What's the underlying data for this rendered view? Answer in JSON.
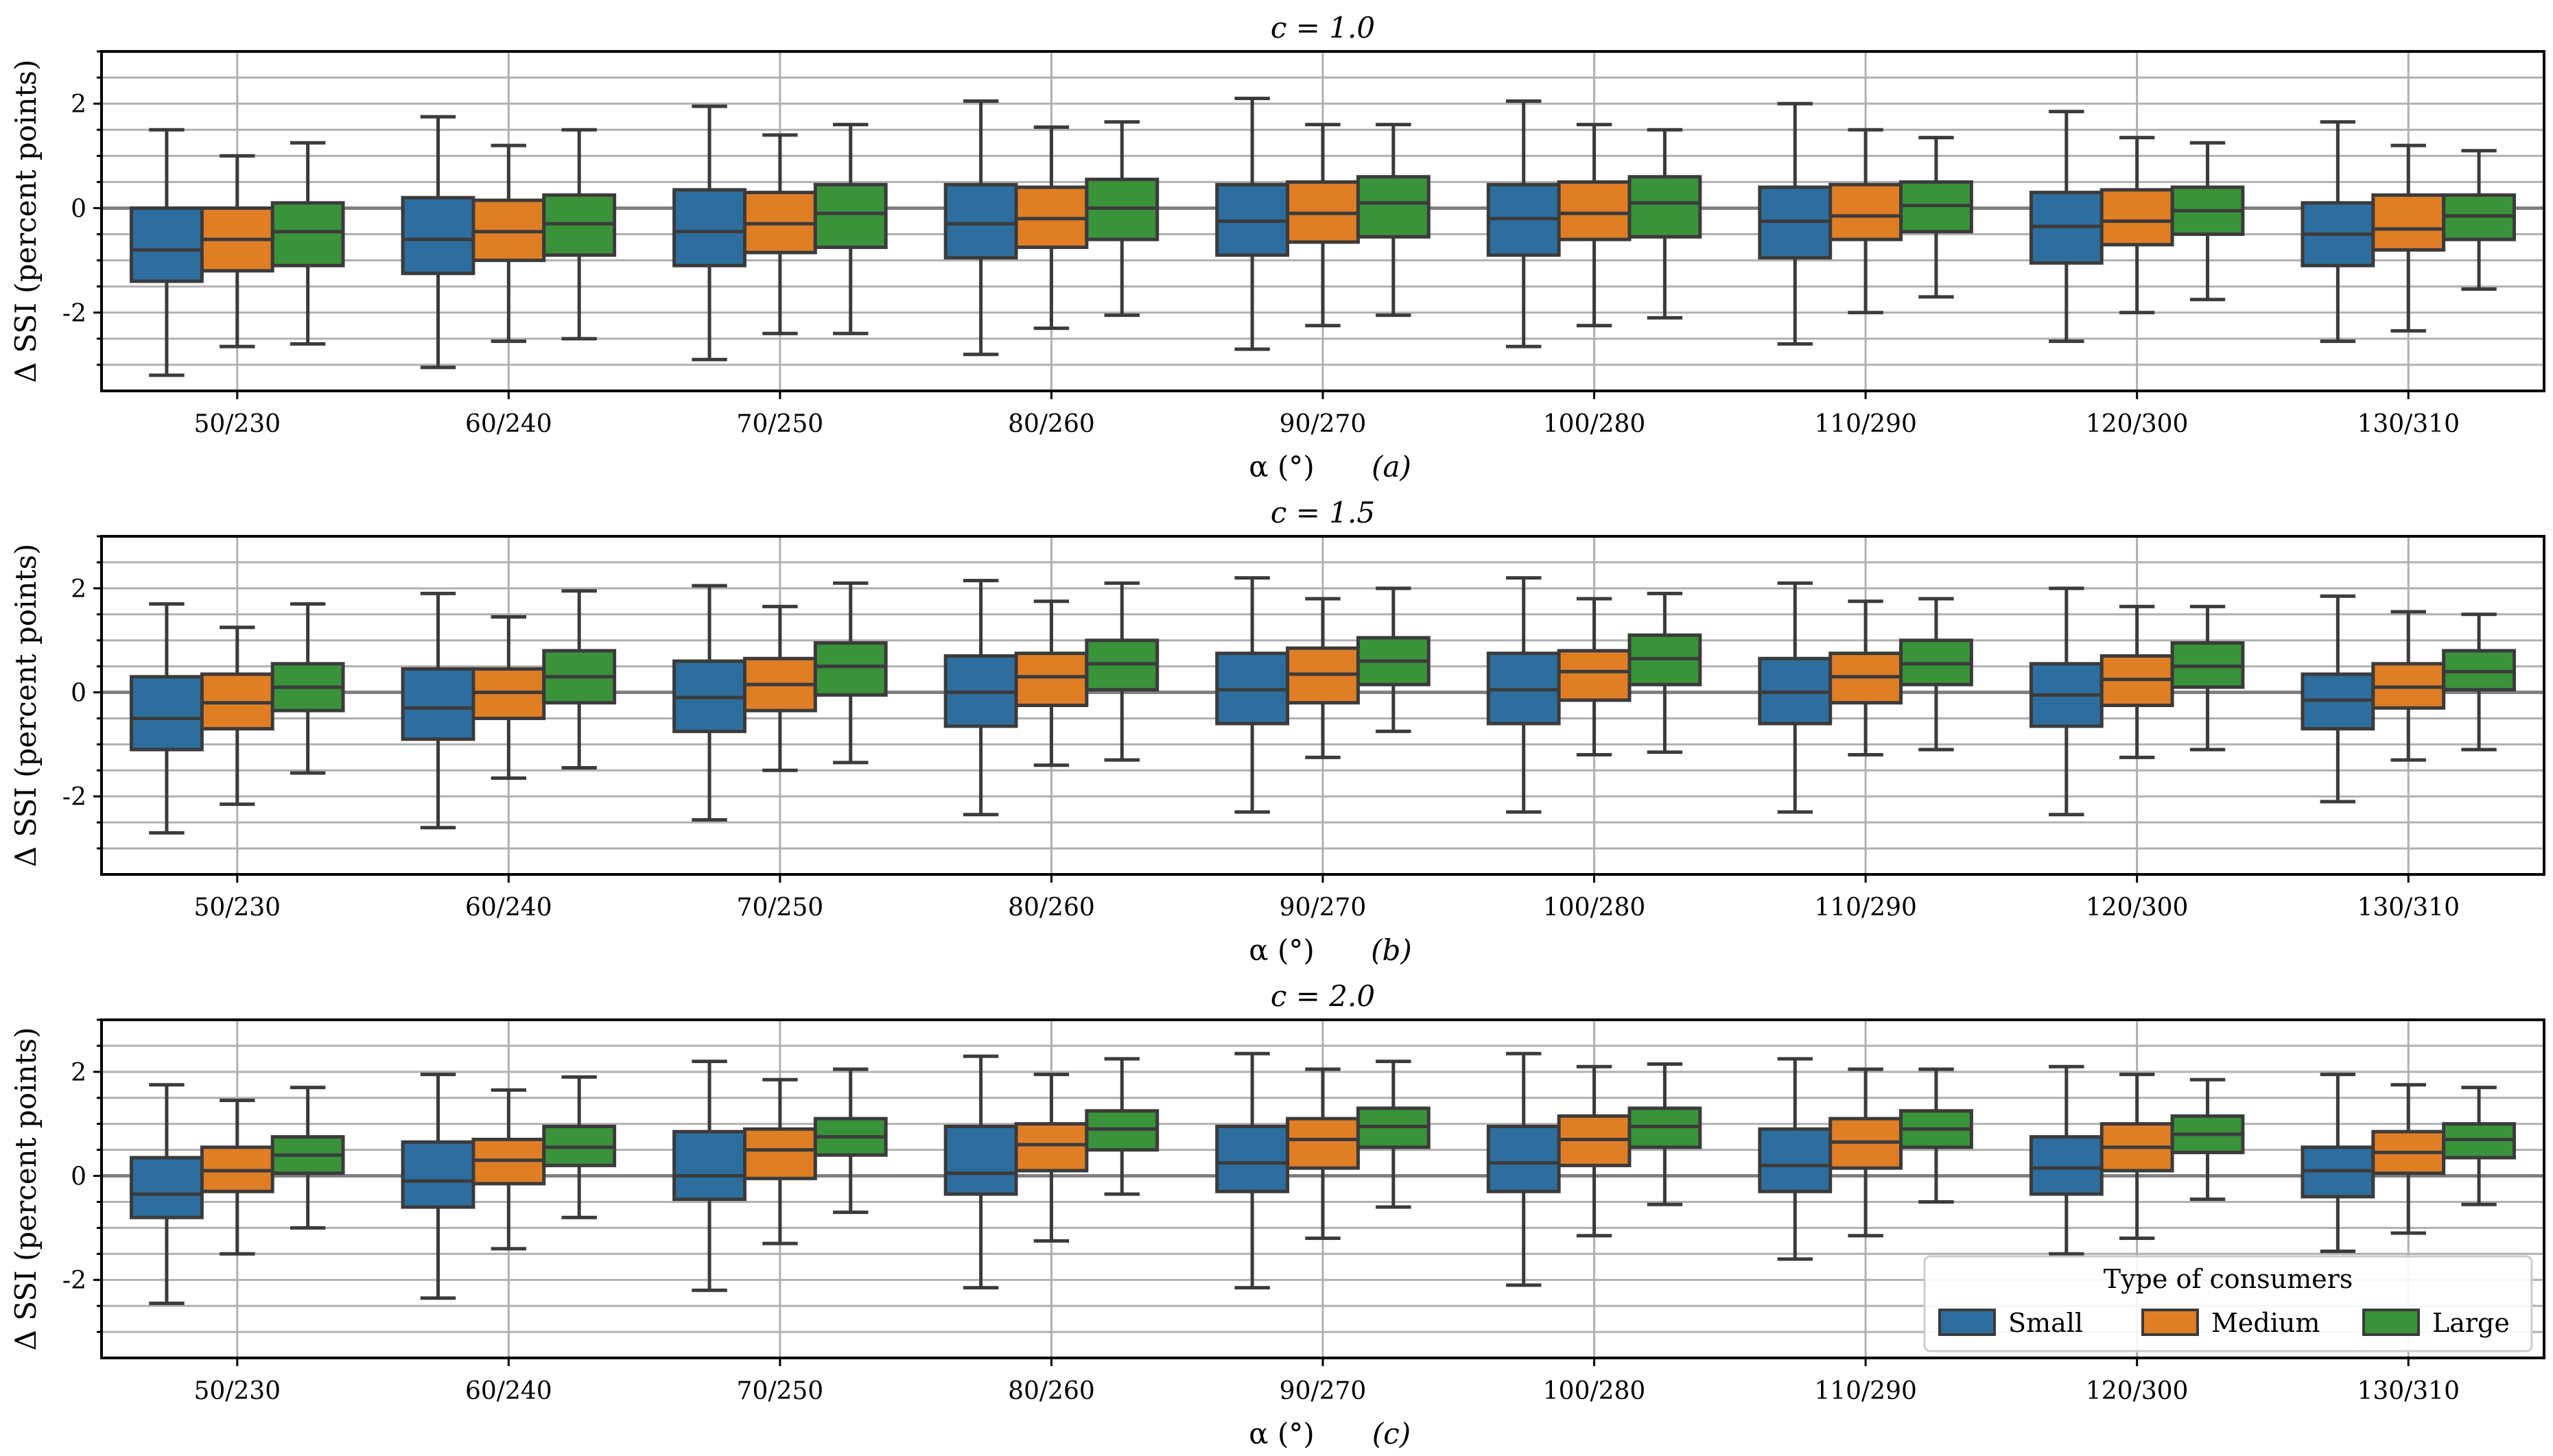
{
  "colors": {
    "small": "#2d6e9e",
    "medium": "#e07e26",
    "large": "#3a923a",
    "box_edge": "#3b3b3b",
    "grid": "#b0b0b0",
    "zero_line": "#808080",
    "median_line": "#cfcfcf"
  },
  "legend": {
    "title": "Type of consumers",
    "items": [
      {
        "key": "small",
        "label": "Small"
      },
      {
        "key": "medium",
        "label": "Medium"
      },
      {
        "key": "large",
        "label": "Large"
      }
    ]
  },
  "chart_data": [
    {
      "type": "box",
      "title": "c = 1.0",
      "ylabel": "Δ SSI (percent points)",
      "xlabel": "α (°)",
      "panel": "(a)",
      "ylim": [
        -3.5,
        3.0
      ],
      "yticks": [
        -2,
        0,
        2
      ],
      "categories": [
        "50/230",
        "60/240",
        "70/250",
        "80/260",
        "90/270",
        "100/280",
        "110/290",
        "120/300",
        "130/310"
      ],
      "series": [
        {
          "name": "Small",
          "key": "small",
          "boxes": [
            {
              "whislo": -3.2,
              "q1": -1.4,
              "med": -0.8,
              "q3": 0.0,
              "whishi": 1.5
            },
            {
              "whislo": -3.05,
              "q1": -1.25,
              "med": -0.6,
              "q3": 0.2,
              "whishi": 1.75
            },
            {
              "whislo": -2.9,
              "q1": -1.1,
              "med": -0.45,
              "q3": 0.35,
              "whishi": 1.95
            },
            {
              "whislo": -2.8,
              "q1": -0.95,
              "med": -0.3,
              "q3": 0.45,
              "whishi": 2.05
            },
            {
              "whislo": -2.7,
              "q1": -0.9,
              "med": -0.25,
              "q3": 0.45,
              "whishi": 2.1
            },
            {
              "whislo": -2.65,
              "q1": -0.9,
              "med": -0.2,
              "q3": 0.45,
              "whishi": 2.05
            },
            {
              "whislo": -2.6,
              "q1": -0.95,
              "med": -0.25,
              "q3": 0.4,
              "whishi": 2.0
            },
            {
              "whislo": -2.55,
              "q1": -1.05,
              "med": -0.35,
              "q3": 0.3,
              "whishi": 1.85
            },
            {
              "whislo": -2.55,
              "q1": -1.1,
              "med": -0.5,
              "q3": 0.1,
              "whishi": 1.65
            }
          ]
        },
        {
          "name": "Medium",
          "key": "medium",
          "boxes": [
            {
              "whislo": -2.65,
              "q1": -1.2,
              "med": -0.6,
              "q3": 0.0,
              "whishi": 1.0
            },
            {
              "whislo": -2.55,
              "q1": -1.0,
              "med": -0.45,
              "q3": 0.15,
              "whishi": 1.2
            },
            {
              "whislo": -2.4,
              "q1": -0.85,
              "med": -0.3,
              "q3": 0.3,
              "whishi": 1.4
            },
            {
              "whislo": -2.3,
              "q1": -0.75,
              "med": -0.2,
              "q3": 0.4,
              "whishi": 1.55
            },
            {
              "whislo": -2.25,
              "q1": -0.65,
              "med": -0.1,
              "q3": 0.5,
              "whishi": 1.6
            },
            {
              "whislo": -2.25,
              "q1": -0.6,
              "med": -0.1,
              "q3": 0.5,
              "whishi": 1.6
            },
            {
              "whislo": -2.0,
              "q1": -0.6,
              "med": -0.15,
              "q3": 0.45,
              "whishi": 1.5
            },
            {
              "whislo": -2.0,
              "q1": -0.7,
              "med": -0.25,
              "q3": 0.35,
              "whishi": 1.35
            },
            {
              "whislo": -2.35,
              "q1": -0.8,
              "med": -0.4,
              "q3": 0.25,
              "whishi": 1.2
            }
          ]
        },
        {
          "name": "Large",
          "key": "large",
          "boxes": [
            {
              "whislo": -2.6,
              "q1": -1.1,
              "med": -0.45,
              "q3": 0.1,
              "whishi": 1.25
            },
            {
              "whislo": -2.5,
              "q1": -0.9,
              "med": -0.3,
              "q3": 0.25,
              "whishi": 1.5
            },
            {
              "whislo": -2.4,
              "q1": -0.75,
              "med": -0.1,
              "q3": 0.45,
              "whishi": 1.6
            },
            {
              "whislo": -2.05,
              "q1": -0.6,
              "med": 0.0,
              "q3": 0.55,
              "whishi": 1.65
            },
            {
              "whislo": -2.05,
              "q1": -0.55,
              "med": 0.1,
              "q3": 0.6,
              "whishi": 1.6
            },
            {
              "whislo": -2.1,
              "q1": -0.55,
              "med": 0.1,
              "q3": 0.6,
              "whishi": 1.5
            },
            {
              "whislo": -1.7,
              "q1": -0.45,
              "med": 0.05,
              "q3": 0.5,
              "whishi": 1.35
            },
            {
              "whislo": -1.75,
              "q1": -0.5,
              "med": -0.05,
              "q3": 0.4,
              "whishi": 1.25
            },
            {
              "whislo": -1.55,
              "q1": -0.6,
              "med": -0.15,
              "q3": 0.25,
              "whishi": 1.1
            }
          ]
        }
      ]
    },
    {
      "type": "box",
      "title": "c = 1.5",
      "ylabel": "Δ SSI (percent points)",
      "xlabel": "α (°)",
      "panel": "(b)",
      "ylim": [
        -3.5,
        3.0
      ],
      "yticks": [
        -2,
        0,
        2
      ],
      "categories": [
        "50/230",
        "60/240",
        "70/250",
        "80/260",
        "90/270",
        "100/280",
        "110/290",
        "120/300",
        "130/310"
      ],
      "series": [
        {
          "name": "Small",
          "key": "small",
          "boxes": [
            {
              "whislo": -2.7,
              "q1": -1.1,
              "med": -0.5,
              "q3": 0.3,
              "whishi": 1.7
            },
            {
              "whislo": -2.6,
              "q1": -0.9,
              "med": -0.3,
              "q3": 0.45,
              "whishi": 1.9
            },
            {
              "whislo": -2.45,
              "q1": -0.75,
              "med": -0.1,
              "q3": 0.6,
              "whishi": 2.05
            },
            {
              "whislo": -2.35,
              "q1": -0.65,
              "med": 0.0,
              "q3": 0.7,
              "whishi": 2.15
            },
            {
              "whislo": -2.3,
              "q1": -0.6,
              "med": 0.05,
              "q3": 0.75,
              "whishi": 2.2
            },
            {
              "whislo": -2.3,
              "q1": -0.6,
              "med": 0.05,
              "q3": 0.75,
              "whishi": 2.2
            },
            {
              "whislo": -2.3,
              "q1": -0.6,
              "med": 0.0,
              "q3": 0.65,
              "whishi": 2.1
            },
            {
              "whislo": -2.35,
              "q1": -0.65,
              "med": -0.05,
              "q3": 0.55,
              "whishi": 2.0
            },
            {
              "whislo": -2.1,
              "q1": -0.7,
              "med": -0.15,
              "q3": 0.35,
              "whishi": 1.85
            }
          ]
        },
        {
          "name": "Medium",
          "key": "medium",
          "boxes": [
            {
              "whislo": -2.15,
              "q1": -0.7,
              "med": -0.2,
              "q3": 0.35,
              "whishi": 1.25
            },
            {
              "whislo": -1.65,
              "q1": -0.5,
              "med": 0.0,
              "q3": 0.45,
              "whishi": 1.45
            },
            {
              "whislo": -1.5,
              "q1": -0.35,
              "med": 0.15,
              "q3": 0.65,
              "whishi": 1.65
            },
            {
              "whislo": -1.4,
              "q1": -0.25,
              "med": 0.3,
              "q3": 0.75,
              "whishi": 1.75
            },
            {
              "whislo": -1.25,
              "q1": -0.2,
              "med": 0.35,
              "q3": 0.85,
              "whishi": 1.8
            },
            {
              "whislo": -1.2,
              "q1": -0.15,
              "med": 0.4,
              "q3": 0.8,
              "whishi": 1.8
            },
            {
              "whislo": -1.2,
              "q1": -0.2,
              "med": 0.3,
              "q3": 0.75,
              "whishi": 1.75
            },
            {
              "whislo": -1.25,
              "q1": -0.25,
              "med": 0.25,
              "q3": 0.7,
              "whishi": 1.65
            },
            {
              "whislo": -1.3,
              "q1": -0.3,
              "med": 0.1,
              "q3": 0.55,
              "whishi": 1.55
            }
          ]
        },
        {
          "name": "Large",
          "key": "large",
          "boxes": [
            {
              "whislo": -1.55,
              "q1": -0.35,
              "med": 0.1,
              "q3": 0.55,
              "whishi": 1.7
            },
            {
              "whislo": -1.45,
              "q1": -0.2,
              "med": 0.3,
              "q3": 0.8,
              "whishi": 1.95
            },
            {
              "whislo": -1.35,
              "q1": -0.05,
              "med": 0.5,
              "q3": 0.95,
              "whishi": 2.1
            },
            {
              "whislo": -1.3,
              "q1": 0.05,
              "med": 0.55,
              "q3": 1.0,
              "whishi": 2.1
            },
            {
              "whislo": -0.75,
              "q1": 0.15,
              "med": 0.6,
              "q3": 1.05,
              "whishi": 2.0
            },
            {
              "whislo": -1.15,
              "q1": 0.15,
              "med": 0.65,
              "q3": 1.1,
              "whishi": 1.9
            },
            {
              "whislo": -1.1,
              "q1": 0.15,
              "med": 0.55,
              "q3": 1.0,
              "whishi": 1.8
            },
            {
              "whislo": -1.1,
              "q1": 0.1,
              "med": 0.5,
              "q3": 0.95,
              "whishi": 1.65
            },
            {
              "whislo": -1.1,
              "q1": 0.05,
              "med": 0.4,
              "q3": 0.8,
              "whishi": 1.5
            }
          ]
        }
      ]
    },
    {
      "type": "box",
      "title": "c = 2.0",
      "ylabel": "Δ SSI (percent points)",
      "xlabel": "α (°)",
      "panel": "(c)",
      "ylim": [
        -3.5,
        3.0
      ],
      "yticks": [
        -2,
        0,
        2
      ],
      "categories": [
        "50/230",
        "60/240",
        "70/250",
        "80/260",
        "90/270",
        "100/280",
        "110/290",
        "120/300",
        "130/310"
      ],
      "series": [
        {
          "name": "Small",
          "key": "small",
          "boxes": [
            {
              "whislo": -2.45,
              "q1": -0.8,
              "med": -0.35,
              "q3": 0.35,
              "whishi": 1.75
            },
            {
              "whislo": -2.35,
              "q1": -0.6,
              "med": -0.1,
              "q3": 0.65,
              "whishi": 1.95
            },
            {
              "whislo": -2.2,
              "q1": -0.45,
              "med": 0.0,
              "q3": 0.85,
              "whishi": 2.2
            },
            {
              "whislo": -2.15,
              "q1": -0.35,
              "med": 0.05,
              "q3": 0.95,
              "whishi": 2.3
            },
            {
              "whislo": -2.15,
              "q1": -0.3,
              "med": 0.25,
              "q3": 0.95,
              "whishi": 2.35
            },
            {
              "whislo": -2.1,
              "q1": -0.3,
              "med": 0.25,
              "q3": 0.95,
              "whishi": 2.35
            },
            {
              "whislo": -1.6,
              "q1": -0.3,
              "med": 0.2,
              "q3": 0.9,
              "whishi": 2.25
            },
            {
              "whislo": -1.5,
              "q1": -0.35,
              "med": 0.15,
              "q3": 0.75,
              "whishi": 2.1
            },
            {
              "whislo": -1.45,
              "q1": -0.4,
              "med": 0.1,
              "q3": 0.55,
              "whishi": 1.95
            }
          ]
        },
        {
          "name": "Medium",
          "key": "medium",
          "boxes": [
            {
              "whislo": -1.5,
              "q1": -0.3,
              "med": 0.1,
              "q3": 0.55,
              "whishi": 1.45
            },
            {
              "whislo": -1.4,
              "q1": -0.15,
              "med": 0.3,
              "q3": 0.7,
              "whishi": 1.65
            },
            {
              "whislo": -1.3,
              "q1": -0.05,
              "med": 0.5,
              "q3": 0.9,
              "whishi": 1.85
            },
            {
              "whislo": -1.25,
              "q1": 0.1,
              "med": 0.6,
              "q3": 1.0,
              "whishi": 1.95
            },
            {
              "whislo": -1.2,
              "q1": 0.15,
              "med": 0.7,
              "q3": 1.1,
              "whishi": 2.05
            },
            {
              "whislo": -1.15,
              "q1": 0.2,
              "med": 0.7,
              "q3": 1.15,
              "whishi": 2.1
            },
            {
              "whislo": -1.15,
              "q1": 0.15,
              "med": 0.65,
              "q3": 1.1,
              "whishi": 2.05
            },
            {
              "whislo": -1.2,
              "q1": 0.1,
              "med": 0.55,
              "q3": 1.0,
              "whishi": 1.95
            },
            {
              "whislo": -1.1,
              "q1": 0.05,
              "med": 0.45,
              "q3": 0.85,
              "whishi": 1.75
            }
          ]
        },
        {
          "name": "Large",
          "key": "large",
          "boxes": [
            {
              "whislo": -1.0,
              "q1": 0.05,
              "med": 0.4,
              "q3": 0.75,
              "whishi": 1.7
            },
            {
              "whislo": -0.8,
              "q1": 0.2,
              "med": 0.55,
              "q3": 0.95,
              "whishi": 1.9
            },
            {
              "whislo": -0.7,
              "q1": 0.4,
              "med": 0.75,
              "q3": 1.1,
              "whishi": 2.05
            },
            {
              "whislo": -0.35,
              "q1": 0.5,
              "med": 0.9,
              "q3": 1.25,
              "whishi": 2.25
            },
            {
              "whislo": -0.6,
              "q1": 0.55,
              "med": 0.95,
              "q3": 1.3,
              "whishi": 2.2
            },
            {
              "whislo": -0.55,
              "q1": 0.55,
              "med": 0.95,
              "q3": 1.3,
              "whishi": 2.15
            },
            {
              "whislo": -0.5,
              "q1": 0.55,
              "med": 0.9,
              "q3": 1.25,
              "whishi": 2.05
            },
            {
              "whislo": -0.45,
              "q1": 0.45,
              "med": 0.8,
              "q3": 1.15,
              "whishi": 1.85
            },
            {
              "whislo": -0.55,
              "q1": 0.35,
              "med": 0.7,
              "q3": 1.0,
              "whishi": 1.7
            }
          ]
        }
      ]
    }
  ]
}
